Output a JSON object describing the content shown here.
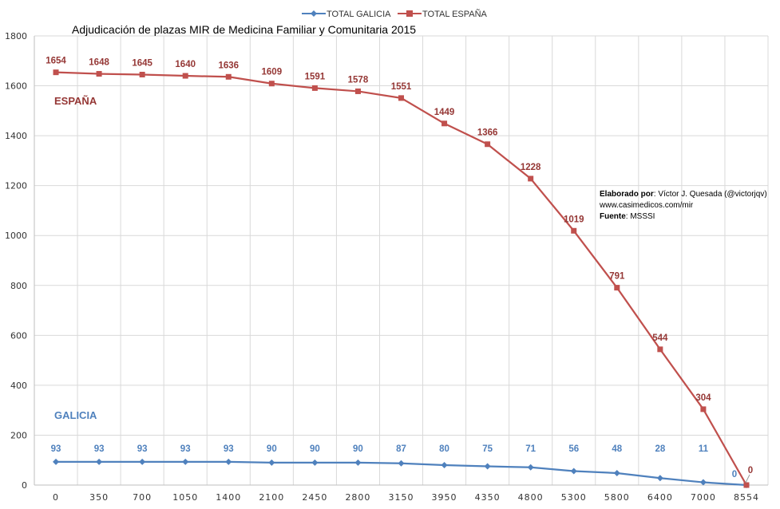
{
  "chart_data": {
    "type": "line",
    "title": "Adjudicación de plazas MIR de Medicina Familiar y Comunitaria 2015",
    "categories": [
      "0",
      "350",
      "700",
      "1050",
      "1400",
      "2100",
      "2450",
      "2800",
      "3150",
      "3950",
      "4350",
      "4800",
      "5300",
      "5800",
      "6400",
      "7000",
      "8554"
    ],
    "ylim": [
      0,
      1800
    ],
    "yticks": [
      0,
      200,
      400,
      600,
      800,
      1000,
      1200,
      1400,
      1600,
      1800
    ],
    "grid": true,
    "legend_position": "top-center",
    "series": [
      {
        "name": "TOTAL GALICIA",
        "values": [
          93,
          93,
          93,
          93,
          93,
          90,
          90,
          90,
          87,
          80,
          75,
          71,
          56,
          48,
          28,
          11,
          0
        ],
        "color": "#4f81bd",
        "marker": "diamond"
      },
      {
        "name": "TOTAL ESPAÑA",
        "values": [
          1654,
          1648,
          1645,
          1640,
          1636,
          1609,
          1591,
          1578,
          1551,
          1449,
          1366,
          1228,
          1019,
          791,
          544,
          304,
          0
        ],
        "color": "#c0504d",
        "marker": "square"
      }
    ],
    "annotations": {
      "espana_label": "ESPAÑA",
      "galicia_label": "GALICIA",
      "credits_prefix_1": "Elaborado por",
      "credits_value_1": ": Víctor J. Quesada (@victorjqv)",
      "credits_line_2": "www.casimedicos.com/mir",
      "credits_prefix_3": "Fuente",
      "credits_value_3": ": MSSSI"
    }
  }
}
